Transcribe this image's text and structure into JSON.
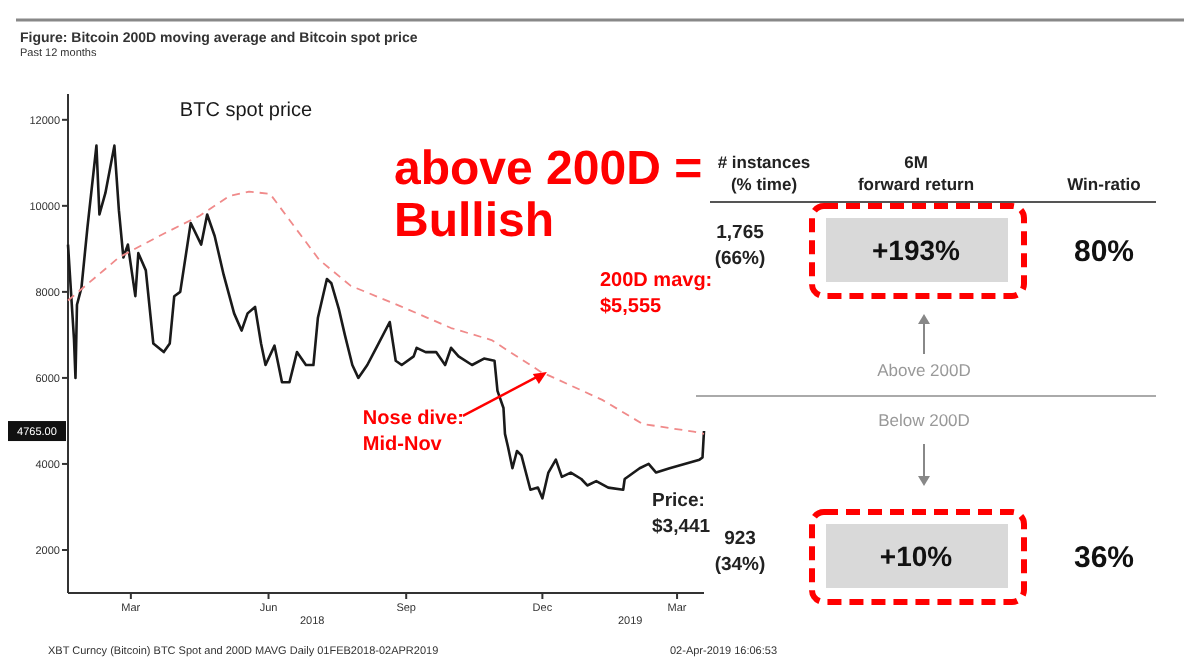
{
  "chart_data": [
    {
      "type": "line",
      "title": "Figure: Bitcoin 200D moving average and Bitcoin spot price",
      "subtitle": "Past 12 months",
      "xlim": [
        "2018-02-01",
        "2019-04-02"
      ],
      "ylim": [
        1000,
        12600
      ],
      "yticks": [
        2000,
        4000,
        6000,
        8000,
        10000,
        12000
      ],
      "xticks": [
        {
          "value": "2018-03-15",
          "label": "Mar"
        },
        {
          "value": "2018-06-15",
          "label": "Jun"
        },
        {
          "value": "2018-09-15",
          "label": "Sep"
        },
        {
          "value": "2018-12-15",
          "label": "Dec"
        },
        {
          "value": "2019-03-15",
          "label": "Mar"
        }
      ],
      "grid": false,
      "series": [
        {
          "name": "BTC spot price",
          "color": "#1a1a1a",
          "line_style": "solid",
          "x": [
            "2018-02-01",
            "2018-02-05",
            "2018-02-06",
            "2018-02-07",
            "2018-02-10",
            "2018-02-14",
            "2018-02-20",
            "2018-02-22",
            "2018-02-26",
            "2018-03-04",
            "2018-03-07",
            "2018-03-10",
            "2018-03-13",
            "2018-03-18",
            "2018-03-20",
            "2018-03-25",
            "2018-03-30",
            "2018-04-06",
            "2018-04-10",
            "2018-04-13",
            "2018-04-17",
            "2018-04-24",
            "2018-05-01",
            "2018-05-05",
            "2018-05-10",
            "2018-05-16",
            "2018-05-23",
            "2018-05-28",
            "2018-06-01",
            "2018-06-06",
            "2018-06-10",
            "2018-06-13",
            "2018-06-19",
            "2018-06-24",
            "2018-06-29",
            "2018-07-04",
            "2018-07-10",
            "2018-07-15",
            "2018-07-18",
            "2018-07-24",
            "2018-07-27",
            "2018-08-01",
            "2018-08-05",
            "2018-08-10",
            "2018-08-14",
            "2018-08-20",
            "2018-08-26",
            "2018-09-04",
            "2018-09-08",
            "2018-09-12",
            "2018-09-20",
            "2018-09-22",
            "2018-09-28",
            "2018-10-05",
            "2018-10-11",
            "2018-10-15",
            "2018-10-20",
            "2018-10-29",
            "2018-11-06",
            "2018-11-13",
            "2018-11-15",
            "2018-11-19",
            "2018-11-20",
            "2018-11-22",
            "2018-11-25",
            "2018-11-28",
            "2018-12-01",
            "2018-12-07",
            "2018-12-12",
            "2018-12-15",
            "2018-12-19",
            "2018-12-24",
            "2018-12-28",
            "2019-01-03",
            "2019-01-10",
            "2019-01-14",
            "2019-01-20",
            "2019-01-28",
            "2019-02-07",
            "2019-02-08",
            "2019-02-18",
            "2019-02-24",
            "2019-03-01",
            "2019-03-10",
            "2019-03-20",
            "2019-03-30",
            "2019-04-01",
            "2019-04-02"
          ],
          "values": [
            9100,
            6900,
            6000,
            7700,
            8100,
            9500,
            11400,
            9800,
            10300,
            11400,
            9900,
            8800,
            9100,
            7900,
            8900,
            8500,
            6800,
            6600,
            6800,
            7900,
            8000,
            9600,
            9100,
            9800,
            9300,
            8400,
            7500,
            7100,
            7500,
            7650,
            6800,
            6300,
            6750,
            5900,
            5900,
            6600,
            6300,
            6300,
            7400,
            8300,
            8200,
            7600,
            7000,
            6300,
            6000,
            6300,
            6700,
            7300,
            6400,
            6300,
            6500,
            6700,
            6600,
            6600,
            6300,
            6700,
            6500,
            6300,
            6450,
            6400,
            5700,
            5300,
            4700,
            4400,
            3900,
            4300,
            4200,
            3400,
            3450,
            3200,
            3800,
            4100,
            3700,
            3800,
            3650,
            3500,
            3600,
            3450,
            3400,
            3650,
            3900,
            4000,
            3800,
            3900,
            4000,
            4100,
            4150,
            4765
          ]
        },
        {
          "color": "#f08a8a",
          "line_style": "dashed",
          "x": [
            "2018-02-01",
            "2018-03-07",
            "2018-04-03",
            "2018-04-30",
            "2018-05-20",
            "2018-06-02",
            "2018-06-16",
            "2018-06-29",
            "2018-07-19",
            "2018-08-09",
            "2018-09-11",
            "2018-10-15",
            "2018-11-11",
            "2018-12-14",
            "2019-01-24",
            "2019-02-20",
            "2019-03-26",
            "2019-04-02"
          ],
          "values": [
            7800,
            8800,
            9300,
            9770,
            10230,
            10330,
            10280,
            9670,
            8740,
            8140,
            7670,
            7160,
            6880,
            6140,
            5490,
            4930,
            4750,
            4700
          ]
        }
      ],
      "annotations": [
        {
          "text": "4765.00",
          "y": 4765
        },
        "above 200D =\nBullish",
        {
          "text": "Nose dive:\nMid-Nov",
          "x": "2018-12-18",
          "y": 6140
        },
        "200D mavg:\n$5,555",
        "Price:\n$3,441",
        "XBT Curncy (Bitcoin) BTC Spot and 200D MAVG  Daily 01FEB2018-02APR2019",
        "02-Apr-2019 16:06:53",
        "2018",
        "2019"
      ]
    },
    {
      "type": "other",
      "categories": [
        "# instances\n(% time)",
        "6M\nforward return",
        "Win-ratio"
      ],
      "y_categories": [
        "Above 200D",
        "Below 200D"
      ],
      "cell_labels": [
        [
          "1,765\n(66%)",
          "+193%",
          "80%"
        ],
        [
          "923\n(34%)",
          "+10%",
          "36%"
        ]
      ]
    }
  ]
}
